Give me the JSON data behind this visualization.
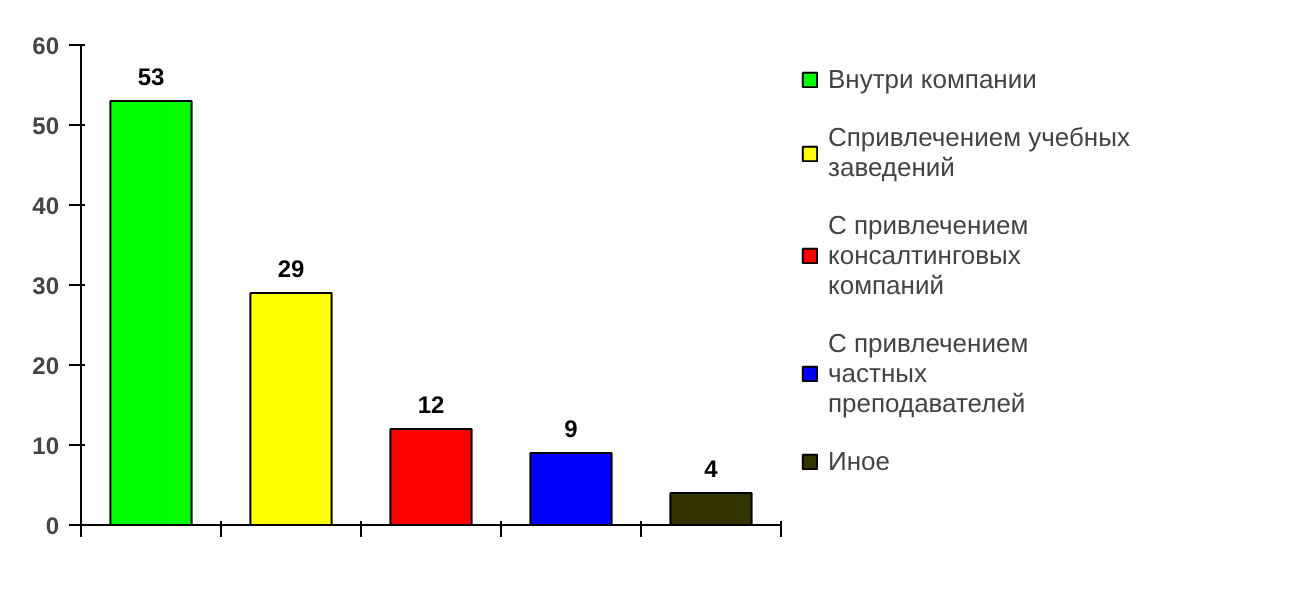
{
  "chart_data": {
    "type": "bar",
    "categories": [
      null,
      null,
      null,
      null,
      null
    ],
    "series": [
      {
        "name": "Внутри компании",
        "color": "#00ff00",
        "values": [
          53,
          null,
          null,
          null,
          null
        ]
      },
      {
        "name": "Спривлечением учебных заведений",
        "color": "#ffff00",
        "values": [
          null,
          29,
          null,
          null,
          null
        ]
      },
      {
        "name": "С привлечением консалтинговых компаний",
        "color": "#ff0000",
        "values": [
          null,
          null,
          12,
          null,
          null
        ]
      },
      {
        "name": "С привлечением частных преподавателей",
        "color": "#0000ff",
        "values": [
          null,
          null,
          null,
          9,
          null
        ]
      },
      {
        "name": "Иное",
        "color": "#333300",
        "values": [
          null,
          null,
          null,
          null,
          4
        ]
      }
    ],
    "ylim": [
      0,
      60
    ],
    "yticks": [
      0,
      10,
      20,
      30,
      40,
      50,
      60
    ],
    "grid": false,
    "legend": "right",
    "data_labels": true
  }
}
